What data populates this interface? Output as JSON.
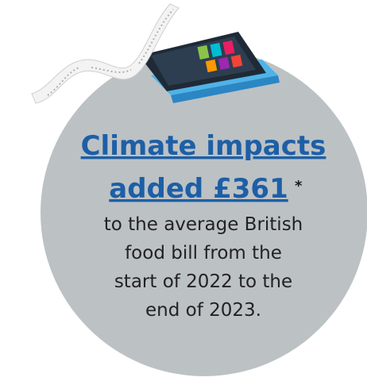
{
  "headline": {
    "lines": [
      "Climate impacts",
      "added £361"
    ],
    "mark": "*"
  },
  "body": {
    "lines": [
      "to the average British",
      "food bill from the",
      "start of 2022 to the",
      "end of 2023."
    ]
  }
}
